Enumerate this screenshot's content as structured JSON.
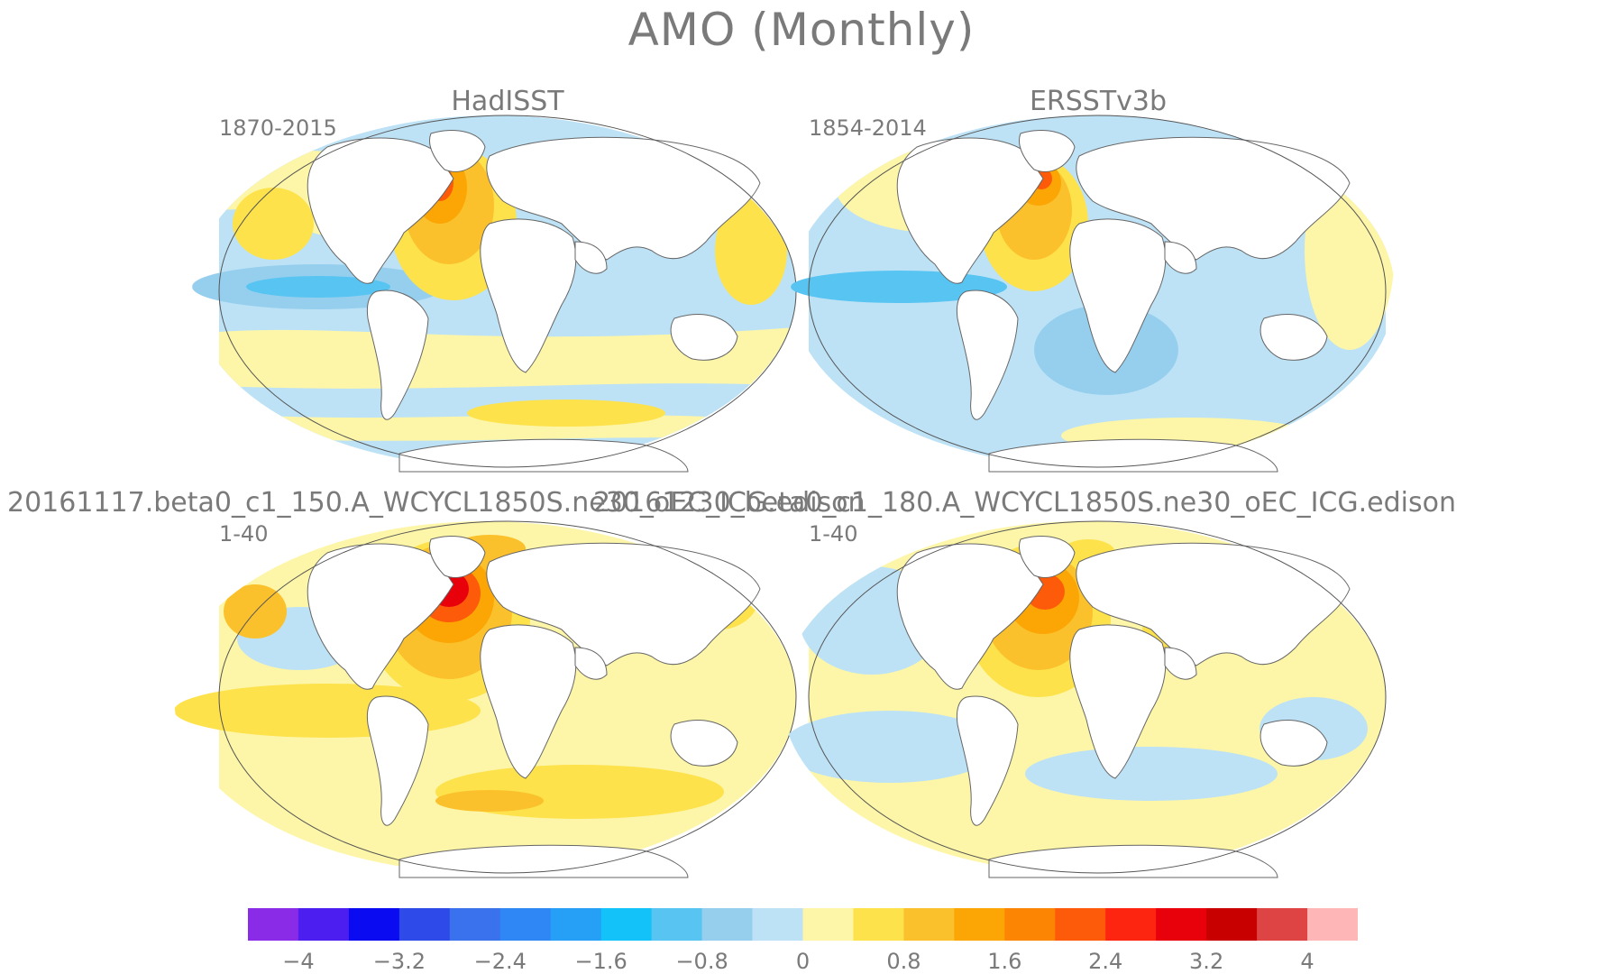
{
  "title": "AMO (Monthly)",
  "panels": [
    {
      "title": "HadISST",
      "period": "1870-2015"
    },
    {
      "title": "ERSSTv3b",
      "period": "1854-2014"
    },
    {
      "title": "20161117.beta0_c1_150.A_WCYCL1850S.ne30_oEC_ICG.edison",
      "period": "1-40"
    },
    {
      "title": "20161230_beta0_c1_180.A_WCYCL1850S.ne30_oEC_ICG.edison",
      "period": "1-40"
    }
  ],
  "colorbar": {
    "colors": [
      "#8a2be8",
      "#4c1ef0",
      "#0b0bf2",
      "#2e4bea",
      "#3972ec",
      "#2f86f5",
      "#25a0f6",
      "#12c2f8",
      "#58c4f2",
      "#96cfee",
      "#bde2f6",
      "#fdf6a8",
      "#fde24c",
      "#fbc12c",
      "#fba604",
      "#fc8603",
      "#fd5a0a",
      "#fd2510",
      "#e8000a",
      "#c80000",
      "#de4444",
      "#ffb6b6"
    ],
    "ticks": [
      "−4",
      "−3.2",
      "−2.4",
      "−1.6",
      "−0.8",
      "0",
      "0.8",
      "1.6",
      "2.4",
      "3.2",
      "4"
    ]
  }
}
